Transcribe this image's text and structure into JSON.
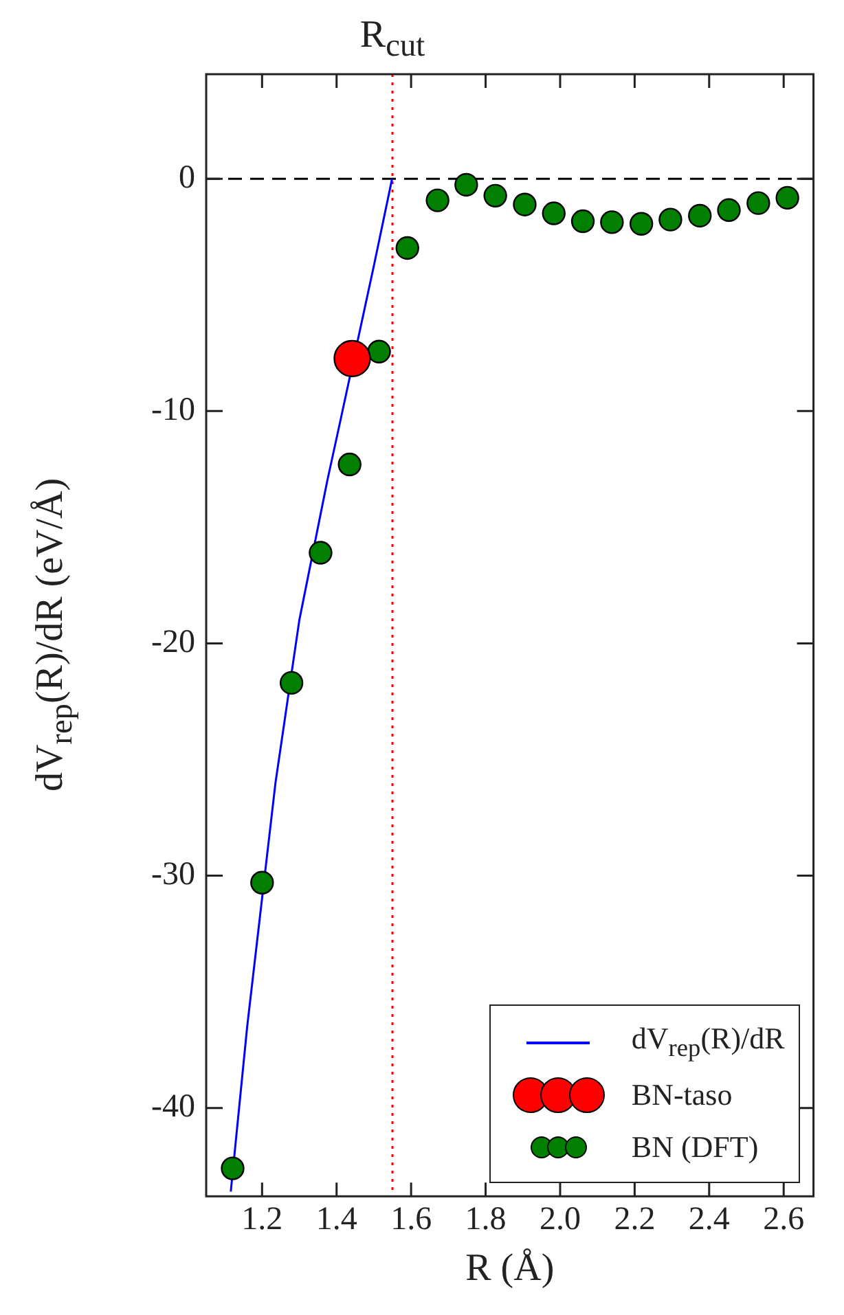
{
  "chart_data": {
    "type": "scatter",
    "xlabel": "R (Å)",
    "ylabel": "dV$_{rep}$(R)/dR (eV/Å)",
    "xlim": [
      1.05,
      2.68
    ],
    "ylim": [
      -43.8,
      4.5
    ],
    "xticks": [
      1.2,
      1.4,
      1.6,
      1.8,
      {
        "value": 2.0,
        "label": "2.0"
      },
      2.2,
      2.4,
      2.6
    ],
    "yticks": [
      -40,
      -30,
      -20,
      -10,
      0
    ],
    "series": [
      {
        "name": "dV$_{rep}$(R)/dR",
        "type": "line",
        "marker": "none",
        "line_style": "solid",
        "color": "#0000ff",
        "x": [
          1.116,
          1.16,
          1.236,
          1.3,
          1.375,
          1.409,
          1.5,
          1.549
        ],
        "values": [
          -43.6,
          -36.5,
          -26.0,
          -19.0,
          -13.0,
          -10.5,
          -3.75,
          0
        ]
      },
      {
        "name": "BN-taso",
        "marker": "circle",
        "color": "#ff0000",
        "x": [
          1.442
        ],
        "values": [
          -7.74
        ]
      },
      {
        "name": "BN (DFT)",
        "marker": "circle",
        "color": "#007f00",
        "x": [
          1.121,
          1.2,
          1.279,
          1.357,
          1.435,
          1.514,
          1.59,
          1.671,
          1.748,
          1.826,
          1.905,
          1.983,
          2.061,
          2.139,
          2.218,
          2.296,
          2.375,
          2.453,
          2.532,
          2.61
        ],
        "values": [
          -42.6,
          -30.3,
          -21.7,
          -16.1,
          -12.3,
          -7.44,
          -2.98,
          -0.93,
          -0.26,
          -0.73,
          -1.11,
          -1.49,
          -1.83,
          -1.87,
          -1.94,
          -1.76,
          -1.59,
          -1.35,
          -1.05,
          -0.82
        ]
      }
    ],
    "ref_lines": [
      {
        "axis": "y",
        "value": 0,
        "color": "#000000",
        "line_style": "dashed"
      },
      {
        "axis": "x",
        "value": 1.55,
        "label": "R$_{cut}$",
        "color": "#ff0000",
        "line_style": "dotted"
      }
    ],
    "legend": "bottom right"
  }
}
